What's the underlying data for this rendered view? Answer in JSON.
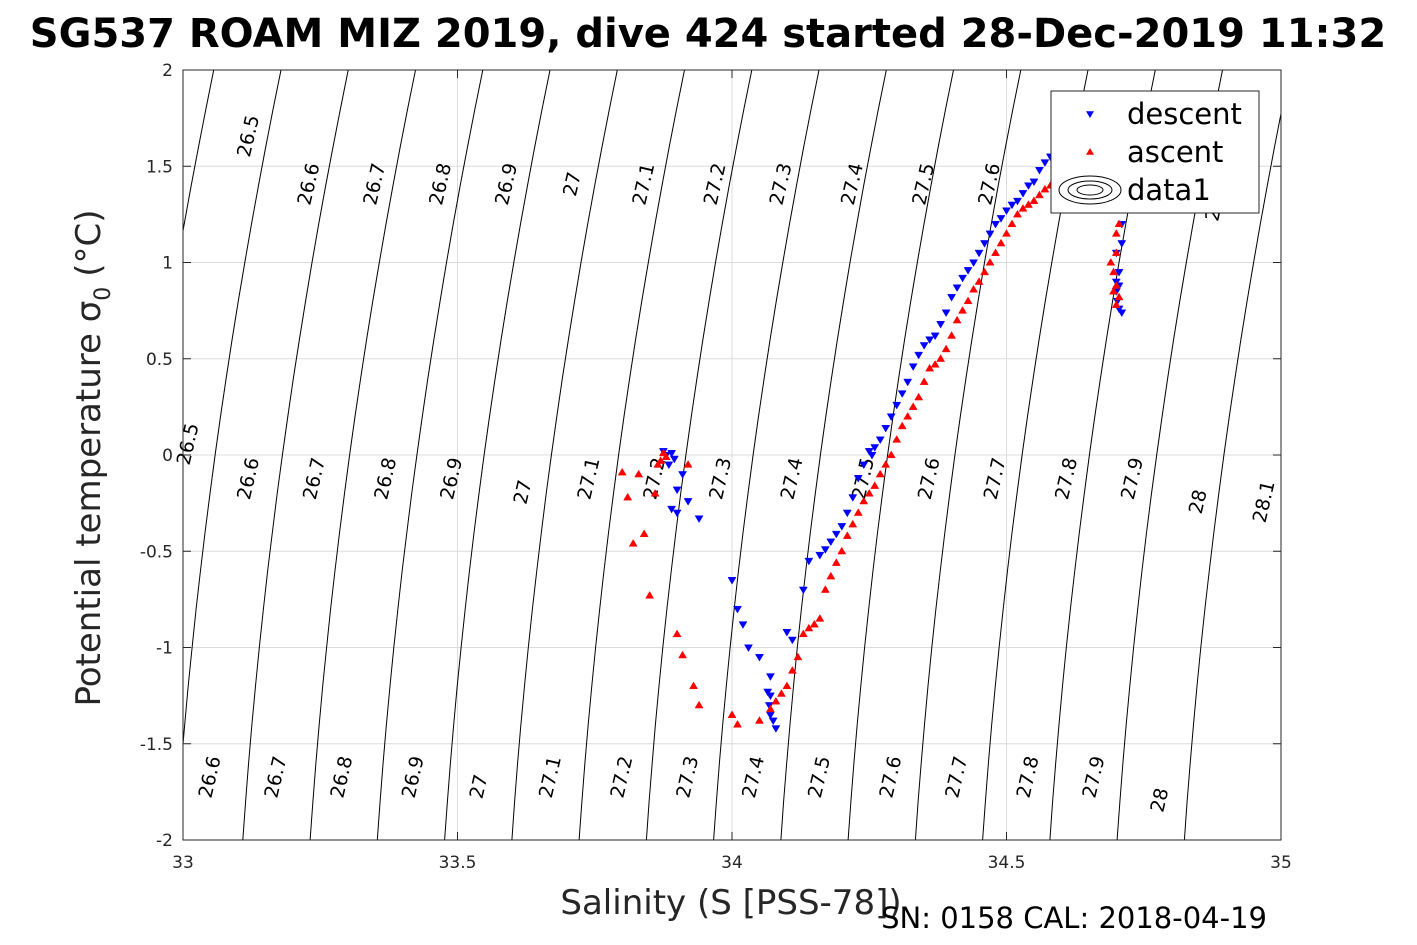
{
  "chart_data": {
    "type": "scatter",
    "title": "SG537 ROAM MIZ 2019, dive 424 started 28-Dec-2019 11:32",
    "xlabel": "Salinity (S [PSS-78])",
    "ylabel_main": "Potential temperature σ",
    "ylabel_sub": "0",
    "ylabel_unit": "(°C)",
    "xlim": [
      33,
      35
    ],
    "ylim": [
      -2,
      2
    ],
    "xticks": [
      33,
      33.5,
      34,
      34.5,
      35
    ],
    "xtick_labels": [
      "33",
      "33.5",
      "34",
      "34.5",
      "35"
    ],
    "yticks": [
      -2,
      -1.5,
      -1,
      -0.5,
      0,
      0.5,
      1,
      1.5,
      2
    ],
    "ytick_labels": [
      "-2",
      "-1.5",
      "-1",
      "-0.5",
      "0",
      "0.5",
      "1",
      "1.5",
      "2"
    ],
    "grid": true,
    "legend": {
      "location": "top-right",
      "entries": [
        {
          "label": "descent",
          "color": "#0000ff",
          "marker": "triangle-down"
        },
        {
          "label": "ascent",
          "color": "#ff0000",
          "marker": "triangle-up"
        },
        {
          "label": "data1",
          "color": "#000000",
          "marker": "contour"
        }
      ]
    },
    "density_contours": {
      "color": "#000000",
      "levels": [
        26.5,
        26.6,
        26.7,
        26.8,
        26.9,
        27,
        27.1,
        27.2,
        27.3,
        27.4,
        27.5,
        27.6,
        27.7,
        27.8,
        27.9,
        28,
        28.1
      ],
      "labels": [
        {
          "text": "26.5",
          "x": 33.13,
          "y": 1.65
        },
        {
          "text": "26.6",
          "x": 33.24,
          "y": 1.4
        },
        {
          "text": "26.7",
          "x": 33.36,
          "y": 1.4
        },
        {
          "text": "26.8",
          "x": 33.48,
          "y": 1.4
        },
        {
          "text": "26.9",
          "x": 33.6,
          "y": 1.4
        },
        {
          "text": "27",
          "x": 33.72,
          "y": 1.4
        },
        {
          "text": "27.1",
          "x": 33.85,
          "y": 1.4
        },
        {
          "text": "27.2",
          "x": 33.98,
          "y": 1.4
        },
        {
          "text": "27.3",
          "x": 34.1,
          "y": 1.4
        },
        {
          "text": "27.4",
          "x": 34.23,
          "y": 1.4
        },
        {
          "text": "27.5",
          "x": 34.36,
          "y": 1.4
        },
        {
          "text": "27.6",
          "x": 34.48,
          "y": 1.4
        },
        {
          "text": "28",
          "x": 34.89,
          "y": 1.27
        },
        {
          "text": "26.5",
          "x": 33.02,
          "y": 0.05
        },
        {
          "text": "26.6",
          "x": 33.13,
          "y": -0.13
        },
        {
          "text": "26.7",
          "x": 33.25,
          "y": -0.13
        },
        {
          "text": "26.8",
          "x": 33.38,
          "y": -0.13
        },
        {
          "text": "26.9",
          "x": 33.5,
          "y": -0.13
        },
        {
          "text": "27",
          "x": 33.63,
          "y": -0.2
        },
        {
          "text": "27.1",
          "x": 33.75,
          "y": -0.13
        },
        {
          "text": "27.2",
          "x": 33.87,
          "y": -0.13
        },
        {
          "text": "27.3",
          "x": 33.99,
          "y": -0.13
        },
        {
          "text": "27.4",
          "x": 34.12,
          "y": -0.13
        },
        {
          "text": "27.5",
          "x": 34.25,
          "y": -0.13
        },
        {
          "text": "27.6",
          "x": 34.37,
          "y": -0.13
        },
        {
          "text": "27.7",
          "x": 34.49,
          "y": -0.13
        },
        {
          "text": "27.8",
          "x": 34.62,
          "y": -0.13
        },
        {
          "text": "27.9",
          "x": 34.74,
          "y": -0.13
        },
        {
          "text": "28",
          "x": 34.86,
          "y": -0.25
        },
        {
          "text": "28.1",
          "x": 34.98,
          "y": -0.25
        },
        {
          "text": "26.6",
          "x": 33.06,
          "y": -1.68
        },
        {
          "text": "26.7",
          "x": 33.18,
          "y": -1.68
        },
        {
          "text": "26.8",
          "x": 33.3,
          "y": -1.68
        },
        {
          "text": "26.9",
          "x": 33.43,
          "y": -1.68
        },
        {
          "text": "27",
          "x": 33.55,
          "y": -1.73
        },
        {
          "text": "27.1",
          "x": 33.68,
          "y": -1.68
        },
        {
          "text": "27.2",
          "x": 33.81,
          "y": -1.68
        },
        {
          "text": "27.3",
          "x": 33.93,
          "y": -1.68
        },
        {
          "text": "27.4",
          "x": 34.05,
          "y": -1.68
        },
        {
          "text": "27.5",
          "x": 34.17,
          "y": -1.68
        },
        {
          "text": "27.6",
          "x": 34.3,
          "y": -1.68
        },
        {
          "text": "27.7",
          "x": 34.42,
          "y": -1.68
        },
        {
          "text": "27.8",
          "x": 34.55,
          "y": -1.68
        },
        {
          "text": "27.9",
          "x": 34.67,
          "y": -1.68
        },
        {
          "text": "28",
          "x": 34.79,
          "y": -1.8
        }
      ]
    },
    "series": [
      {
        "name": "descent",
        "color": "#0000ff",
        "marker": "triangle-down",
        "x": [
          34.08,
          34.075,
          34.07,
          34.068,
          34.07,
          34.065,
          34.1,
          34.11,
          34.05,
          34.07,
          34.03,
          34.02,
          34.01,
          34.0,
          33.9,
          33.89,
          33.94,
          33.9,
          33.92,
          33.91,
          33.885,
          33.88,
          33.875,
          33.89,
          33.895,
          34.13,
          34.14,
          34.16,
          34.17,
          34.18,
          34.19,
          34.2,
          34.21,
          34.22,
          34.23,
          34.24,
          34.25,
          34.255,
          34.26,
          34.27,
          34.28,
          34.29,
          34.3,
          34.31,
          34.32,
          34.33,
          34.34,
          34.35,
          34.36,
          34.37,
          34.38,
          34.39,
          34.4,
          34.41,
          34.42,
          34.43,
          34.44,
          34.45,
          34.46,
          34.47,
          34.48,
          34.49,
          34.5,
          34.51,
          34.52,
          34.53,
          34.54,
          34.55,
          34.56,
          34.57,
          34.58,
          34.59,
          34.6,
          34.61,
          34.62,
          34.63,
          34.64,
          34.65,
          34.66,
          34.67,
          34.68,
          34.69,
          34.695,
          34.7,
          34.705,
          34.71,
          34.71,
          34.71,
          34.705,
          34.7,
          34.7,
          34.702,
          34.705,
          34.71,
          34.705,
          34.7,
          34.71,
          34.705,
          34.702,
          34.7
        ],
        "y": [
          -1.42,
          -1.38,
          -1.35,
          -1.3,
          -1.25,
          -1.23,
          -0.92,
          -0.96,
          -1.05,
          -1.15,
          -1.0,
          -0.88,
          -0.8,
          -0.65,
          -0.3,
          -0.28,
          -0.33,
          -0.18,
          -0.24,
          -0.1,
          -0.05,
          0.0,
          0.02,
          0.01,
          -0.02,
          -0.7,
          -0.55,
          -0.52,
          -0.49,
          -0.45,
          -0.41,
          -0.37,
          -0.3,
          -0.22,
          -0.12,
          -0.05,
          0.02,
          0.0,
          0.04,
          0.08,
          0.14,
          0.2,
          0.26,
          0.32,
          0.38,
          0.46,
          0.52,
          0.57,
          0.6,
          0.62,
          0.68,
          0.74,
          0.82,
          0.87,
          0.92,
          0.96,
          1.0,
          1.05,
          1.1,
          1.15,
          1.2,
          1.23,
          1.27,
          1.3,
          1.32,
          1.36,
          1.4,
          1.42,
          1.48,
          1.52,
          1.55,
          1.58,
          1.6,
          1.63,
          1.65,
          1.66,
          1.68,
          1.69,
          1.7,
          1.72,
          1.73,
          1.74,
          1.75,
          1.73,
          1.7,
          1.5,
          1.3,
          1.1,
          0.95,
          0.9,
          0.85,
          0.8,
          0.76,
          0.74,
          0.88,
          1.05,
          1.2,
          1.35,
          1.45,
          1.55
        ]
      },
      {
        "name": "ascent",
        "color": "#ff0000",
        "marker": "triangle-up",
        "x": [
          33.8,
          33.81,
          33.82,
          33.83,
          33.84,
          33.86,
          33.85,
          33.87,
          33.88,
          33.875,
          33.865,
          33.9,
          33.91,
          33.92,
          33.93,
          33.94,
          34.0,
          34.01,
          34.05,
          34.07,
          34.08,
          34.09,
          34.1,
          34.11,
          34.12,
          34.13,
          34.14,
          34.15,
          34.16,
          34.17,
          34.18,
          34.19,
          34.2,
          34.21,
          34.22,
          34.23,
          34.24,
          34.25,
          34.26,
          34.27,
          34.28,
          34.29,
          34.3,
          34.31,
          34.32,
          34.33,
          34.34,
          34.35,
          34.36,
          34.37,
          34.38,
          34.39,
          34.4,
          34.41,
          34.42,
          34.43,
          34.44,
          34.45,
          34.46,
          34.47,
          34.48,
          34.49,
          34.5,
          34.51,
          34.52,
          34.53,
          34.54,
          34.55,
          34.56,
          34.57,
          34.58,
          34.59,
          34.6,
          34.62,
          34.64,
          34.66,
          34.68,
          34.69,
          34.7,
          34.705,
          34.7,
          34.695,
          34.7,
          34.705,
          34.7,
          34.695,
          34.69,
          34.7
        ],
        "y": [
          -0.09,
          -0.22,
          -0.46,
          -0.1,
          -0.41,
          -0.2,
          -0.73,
          -0.03,
          -0.01,
          0.01,
          -0.05,
          -0.93,
          -1.04,
          -0.05,
          -1.2,
          -1.3,
          -1.35,
          -1.4,
          -1.38,
          -1.32,
          -1.28,
          -1.24,
          -1.2,
          -1.12,
          -1.05,
          -0.93,
          -0.9,
          -0.88,
          -0.85,
          -0.7,
          -0.63,
          -0.56,
          -0.5,
          -0.42,
          -0.36,
          -0.3,
          -0.24,
          -0.2,
          -0.16,
          -0.1,
          -0.05,
          0.0,
          0.08,
          0.15,
          0.2,
          0.25,
          0.3,
          0.38,
          0.45,
          0.47,
          0.5,
          0.55,
          0.62,
          0.7,
          0.75,
          0.8,
          0.86,
          0.9,
          0.95,
          1.0,
          1.05,
          1.1,
          1.15,
          1.2,
          1.25,
          1.28,
          1.3,
          1.32,
          1.35,
          1.38,
          1.4,
          1.42,
          1.44,
          1.46,
          1.48,
          1.5,
          1.52,
          1.45,
          1.35,
          1.2,
          1.05,
          0.95,
          0.88,
          0.82,
          0.78,
          0.85,
          1.0,
          1.15
        ]
      }
    ]
  },
  "footer": {
    "serial": "SN: 0158  CAL: 2018-04-19"
  }
}
